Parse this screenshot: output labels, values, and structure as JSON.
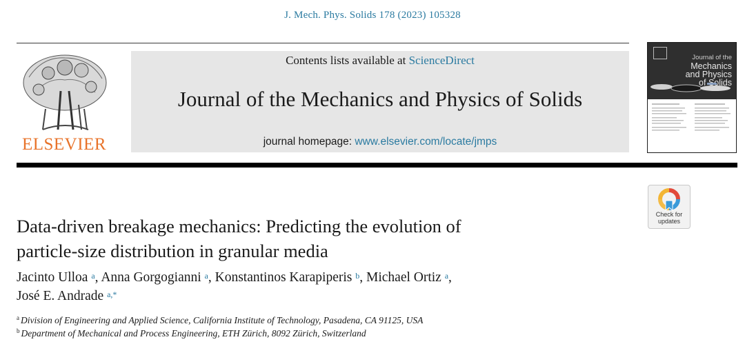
{
  "citation": "J. Mech. Phys. Solids 178 (2023) 105328",
  "publisher": {
    "name": "ELSEVIER"
  },
  "banner": {
    "contents_prefix": "Contents lists available at ",
    "contents_link": "ScienceDirect",
    "journal_title": "Journal of the Mechanics and Physics of Solids",
    "homepage_prefix": "journal homepage: ",
    "homepage_link": "www.elsevier.com/locate/jmps"
  },
  "cover": {
    "line1": "Journal of the",
    "line2": "Mechanics",
    "line3": "and Physics",
    "line4": "of Solids"
  },
  "check_for_updates": {
    "line1": "Check for",
    "line2": "updates"
  },
  "article": {
    "title_line1": "Data-driven breakage mechanics: Predicting the evolution of",
    "title_line2": "particle-size distribution in granular media"
  },
  "authors": [
    {
      "name": "Jacinto Ulloa",
      "aff": "a"
    },
    {
      "name": "Anna Gorgogianni",
      "aff": "a"
    },
    {
      "name": "Konstantinos Karapiperis",
      "aff": "b"
    },
    {
      "name": "Michael Ortiz",
      "aff": "a"
    },
    {
      "name": "José E. Andrade",
      "aff": "a,*"
    }
  ],
  "affiliations": [
    {
      "mark": "a",
      "text": "Division of Engineering and Applied Science, California Institute of Technology, Pasadena, CA 91125, USA"
    },
    {
      "mark": "b",
      "text": "Department of Mechanical and Process Engineering, ETH Zürich, 8092 Zürich, Switzerland"
    }
  ],
  "colors": {
    "link": "#2a7aa0",
    "elsevier_orange": "#e8732a",
    "banner_gray": "#e6e6e6"
  }
}
